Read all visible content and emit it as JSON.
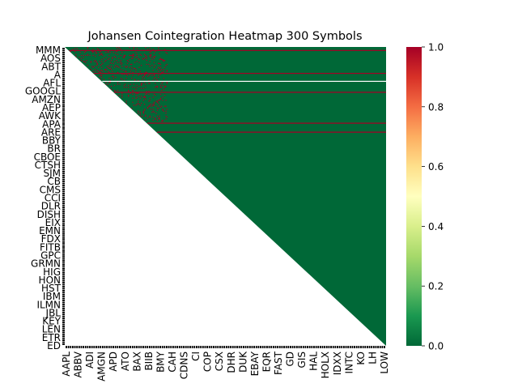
{
  "chart_data": {
    "type": "heatmap",
    "title": "Johansen Cointegration Heatmap 300 Symbols",
    "n_symbols": 300,
    "mask": "lower-triangle",
    "value_range": [
      0.0,
      1.0
    ],
    "colormap": "RdYlGn_r",
    "colorbar": {
      "ticks": [
        0.0,
        0.2,
        0.4,
        0.6,
        0.8,
        1.0
      ],
      "tick_labels": [
        "0.0",
        "0.2",
        "0.4",
        "0.6",
        "0.8",
        "1.0"
      ],
      "stops": [
        "#006837",
        "#1a9850",
        "#66bd63",
        "#a6d96a",
        "#d9ef8b",
        "#ffffbf",
        "#fee08b",
        "#fdae61",
        "#f46d43",
        "#d73027",
        "#a50026"
      ]
    },
    "background_value": 0.0,
    "highlight_rows": [
      {
        "row": 3,
        "value": 1.0
      },
      {
        "row": 26,
        "value": 1.0
      },
      {
        "row": 45,
        "value": 1.0
      },
      {
        "row": 76,
        "value": 1.0
      },
      {
        "row": 85,
        "value": 1.0
      }
    ],
    "missing_rows": [
      26
    ],
    "scattered_block": {
      "rows": [
        0,
        75
      ],
      "cols": [
        0,
        96
      ],
      "value": 1.0
    },
    "y_tick_labels_visible": [
      "MMM",
      "AOS",
      "ABT",
      "A",
      "AFL",
      "GOOGL",
      "AMZN",
      "AEP",
      "AWK",
      "APA",
      "ARE",
      "BBY",
      "BR",
      "CBOE",
      "CTSH",
      "SJM",
      "CB",
      "CMS",
      "CCI",
      "DLR",
      "DISH",
      "EIX",
      "EMN",
      "FDX",
      "FITB",
      "GPC",
      "GRMN",
      "HIG",
      "HON",
      "HST",
      "IBM",
      "ILMN",
      "JBL",
      "KEY",
      "LEN",
      "ETR",
      "ED"
    ],
    "x_tick_labels_visible": [
      "AAPL",
      "ABBV",
      "ADI",
      "AMGN",
      "APD",
      "ATO",
      "BAX",
      "BIIB",
      "BMY",
      "CAH",
      "CDNS",
      "CI",
      "COP",
      "CSX",
      "DHR",
      "DUK",
      "EBAY",
      "EQR",
      "FAST",
      "GD",
      "GIS",
      "HAL",
      "HOLX",
      "IDXX",
      "INTC",
      "KO",
      "LH",
      "LOW"
    ]
  }
}
